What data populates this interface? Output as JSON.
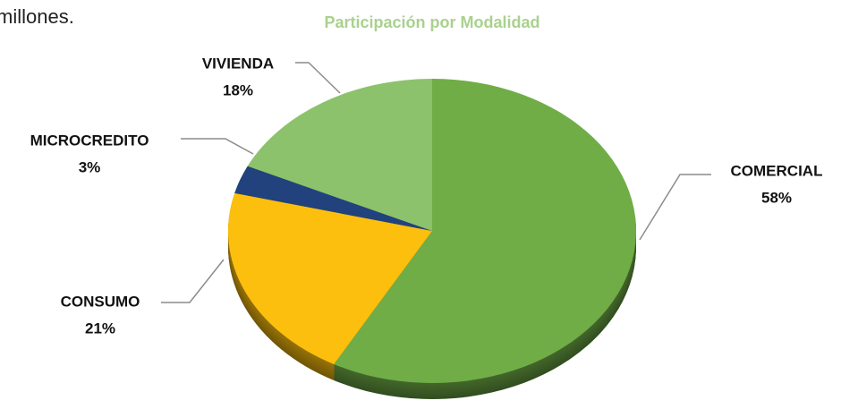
{
  "page_text": "millones.",
  "chart_data": {
    "type": "pie",
    "title": "Participación por Modalidad",
    "categories": [
      "COMERCIAL",
      "CONSUMO",
      "MICROCREDITO",
      "VIVIENDA"
    ],
    "values": [
      58,
      21,
      3,
      18
    ],
    "value_labels": [
      "58%",
      "21%",
      "3%",
      "18%"
    ],
    "colors": [
      "#70ad47",
      "#fcbf0e",
      "#21427d",
      "#8cc26c"
    ]
  }
}
